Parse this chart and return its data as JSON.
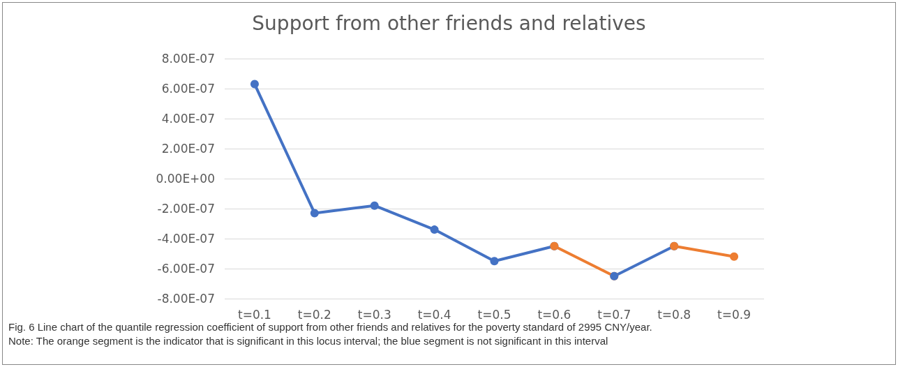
{
  "chart_data": {
    "type": "line",
    "title": "Support from other friends and relatives",
    "categories": [
      "t=0.1",
      "t=0.2",
      "t=0.3",
      "t=0.4",
      "t=0.5",
      "t=0.6",
      "t=0.7",
      "t=0.8",
      "t=0.9"
    ],
    "series": [
      {
        "color": "#4472c4",
        "values": [
          6.3e-07,
          -2.3e-07,
          -1.8e-07,
          -3.4e-07,
          -5.5e-07,
          -4.5e-07,
          null,
          null,
          null
        ]
      },
      {
        "color": "#ed7d31",
        "values": [
          null,
          null,
          null,
          null,
          null,
          -4.5e-07,
          -6.5e-07,
          null,
          null
        ]
      },
      {
        "color": "#4472c4",
        "values": [
          null,
          null,
          null,
          null,
          null,
          null,
          -6.5e-07,
          -4.5e-07,
          null
        ]
      },
      {
        "color": "#ed7d31",
        "values": [
          null,
          null,
          null,
          null,
          null,
          null,
          null,
          -4.5e-07,
          -5.2e-07
        ]
      }
    ],
    "ylim": [
      -8e-07,
      8e-07
    ],
    "yticks": [
      {
        "value": -8e-07,
        "label": "-8.00E-07"
      },
      {
        "value": -6e-07,
        "label": "-6.00E-07"
      },
      {
        "value": -4e-07,
        "label": "-4.00E-07"
      },
      {
        "value": -2e-07,
        "label": "-2.00E-07"
      },
      {
        "value": 0,
        "label": "0.00E+00"
      },
      {
        "value": 2e-07,
        "label": "2.00E-07"
      },
      {
        "value": 4e-07,
        "label": "4.00E-07"
      },
      {
        "value": 6e-07,
        "label": "6.00E-07"
      },
      {
        "value": 8e-07,
        "label": "8.00E-07"
      }
    ],
    "grid": "y",
    "marker": "circle",
    "line_style": "solid",
    "annotations": [
      "Fig. 6  Line chart of the quantile regression coefficient of support from other friends and relatives for the poverty standard of 2995 CNY/year.",
      "Note: The orange segment is the indicator that is significant in this locus interval; the blue segment is not significant in this interval"
    ]
  }
}
